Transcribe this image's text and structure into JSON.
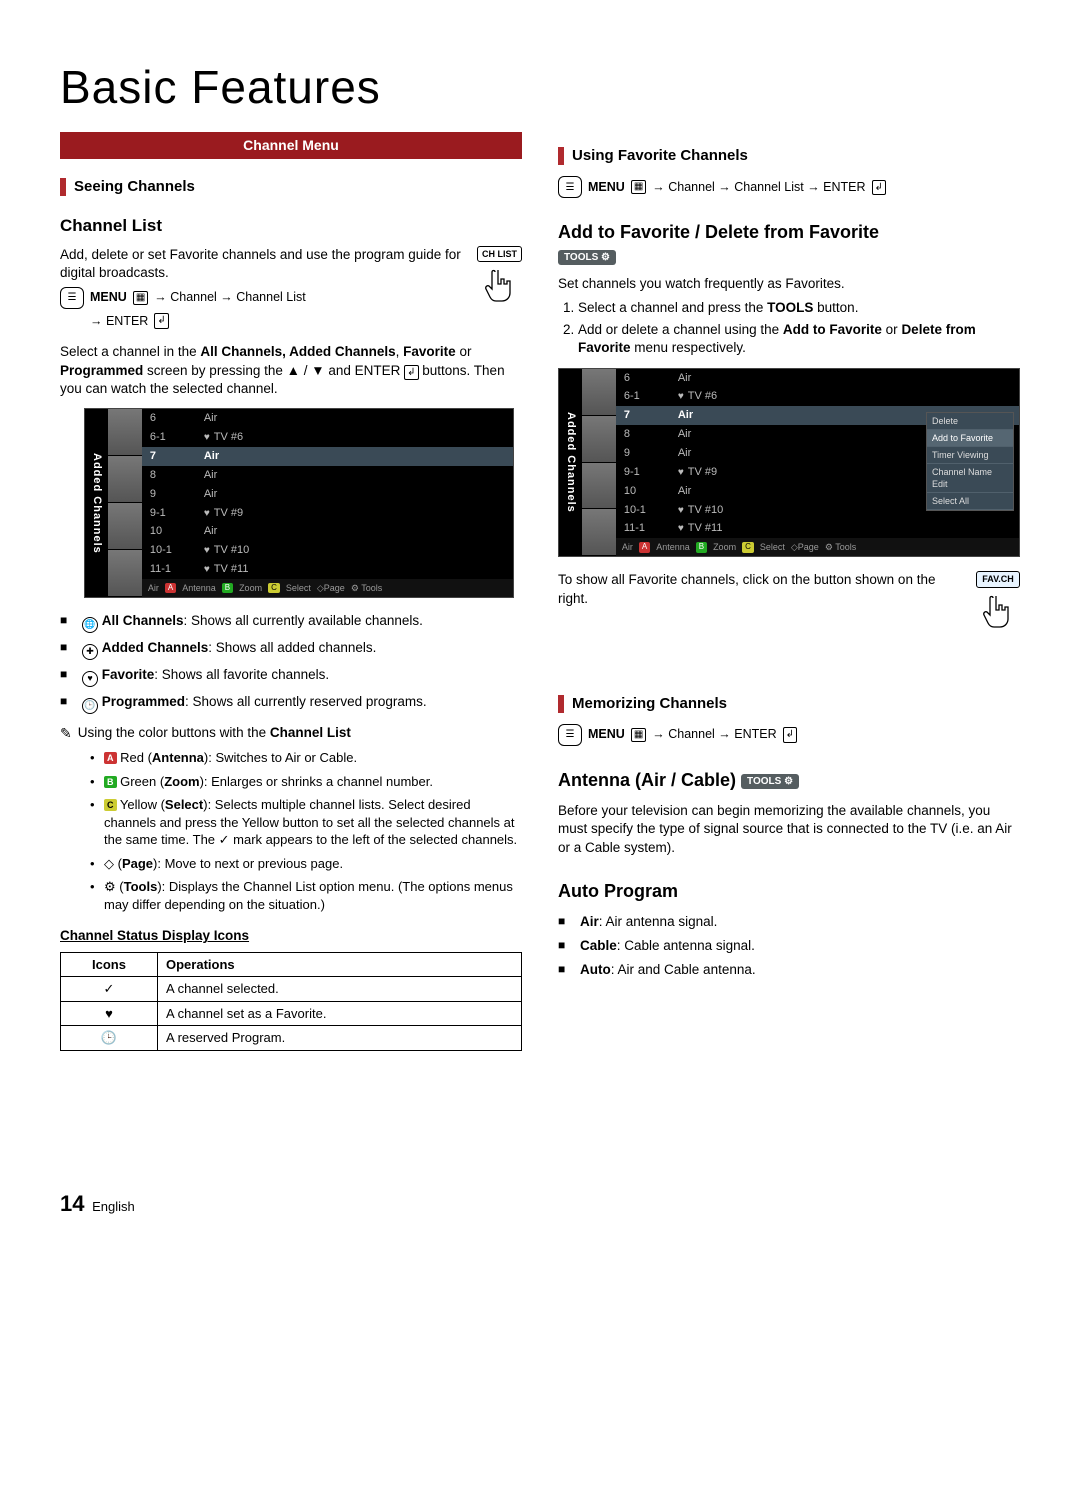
{
  "page": {
    "title": "Basic Features",
    "number": "14",
    "lang": "English"
  },
  "left": {
    "menu_bar": "Channel Menu",
    "seeing_head": "Seeing Channels",
    "chlist_head": "Channel List",
    "intro": "Add, delete or set Favorite channels and use the program guide for digital broadcasts.",
    "path_parts": [
      "MENU",
      "→ Channel → Channel List",
      "→ ENTER"
    ],
    "chlist_btn": "CH LIST",
    "select_para": "Select a channel in the All Channels, Added Channels, Favorite or Programmed screen by pressing the ▲ / ▼ and ENTER buttons. Then you can watch the selected channel.",
    "ch_side": "Added Channels",
    "ch_rows": [
      {
        "num": "6",
        "name": "Air"
      },
      {
        "num": "6-1",
        "name": "TV #6",
        "heart": true
      },
      {
        "num": "7",
        "name": "Air",
        "sel": true
      },
      {
        "num": "8",
        "name": "Air"
      },
      {
        "num": "9",
        "name": "Air"
      },
      {
        "num": "9-1",
        "name": "TV #9",
        "heart": true
      },
      {
        "num": "10",
        "name": "Air"
      },
      {
        "num": "10-1",
        "name": "TV #10",
        "heart": true
      },
      {
        "num": "11-1",
        "name": "TV #11",
        "heart": true
      }
    ],
    "ch_foot_left": "Air",
    "ch_foot": [
      "Antenna",
      "Zoom",
      "Select",
      "Page",
      "Tools"
    ],
    "bullets": [
      {
        "icon": "globe",
        "b": "All Channels",
        "t": ": Shows all currently available channels."
      },
      {
        "icon": "plus",
        "b": "Added Channels",
        "t": ": Shows all added channels."
      },
      {
        "icon": "heart",
        "b": "Favorite",
        "t": ": Shows all favorite channels."
      },
      {
        "icon": "clock",
        "b": "Programmed",
        "t": ": Shows all currently reserved programs."
      }
    ],
    "note": "Using the color buttons with the Channel List",
    "color_bullets": [
      {
        "c": "red",
        "b": "Red (Antenna)",
        "t": ": Switches to Air or Cable."
      },
      {
        "c": "green",
        "b": "Green (Zoom)",
        "t": ": Enlarges or shrinks a channel number."
      },
      {
        "c": "yellow",
        "b": "Yellow (Select)",
        "t": ": Selects multiple channel lists. Select desired channels and press the Yellow button to set all the selected channels at the same time. The ✓ mark appears to the left of the selected channels."
      },
      {
        "c": "page",
        "b": "(Page)",
        "t": ": Move to next or previous page."
      },
      {
        "c": "tools",
        "b": "(Tools)",
        "t": ": Displays the Channel List option menu. (The options menus may differ depending on the situation.)"
      }
    ],
    "icons_head": "Channel Status Display Icons",
    "icons_cols": [
      "Icons",
      "Operations"
    ],
    "icons_rows": [
      {
        "i": "✓",
        "t": "A channel selected."
      },
      {
        "i": "♥",
        "t": "A channel set as a Favorite."
      },
      {
        "i": "🕒",
        "t": "A reserved Program."
      }
    ]
  },
  "right": {
    "using_head": "Using Favorite Channels",
    "path1": [
      "MENU",
      "→ Channel → Channel List → ENTER"
    ],
    "addfav_head": "Add to Favorite / Delete from Favorite",
    "tools": "TOOLS",
    "set_line": "Set channels you watch frequently as Favorites.",
    "steps": [
      "Select a channel and press the TOOLS button.",
      "Add or delete a channel using the Add to Favorite or Delete from Favorite menu respectively."
    ],
    "ch_side": "Added Channels",
    "ch_rows": [
      {
        "num": "6",
        "name": "Air"
      },
      {
        "num": "6-1",
        "name": "TV #6",
        "heart": true
      },
      {
        "num": "7",
        "name": "Air",
        "sel": true
      },
      {
        "num": "8",
        "name": "Air"
      },
      {
        "num": "9",
        "name": "Air"
      },
      {
        "num": "9-1",
        "name": "TV #9",
        "heart": true
      },
      {
        "num": "10",
        "name": "Air"
      },
      {
        "num": "10-1",
        "name": "TV #10",
        "heart": true
      },
      {
        "num": "11-1",
        "name": "TV #11",
        "heart": true
      }
    ],
    "ctx_menu": [
      "Delete",
      "Add to Favorite",
      "Timer Viewing",
      "Channel Name Edit",
      "Select All"
    ],
    "ch_foot_left": "Air",
    "ch_foot": [
      "Antenna",
      "Zoom",
      "Select",
      "Page",
      "Tools"
    ],
    "showfav": "To show all Favorite channels, click on the button shown on the right.",
    "favbtn": "FAV.CH",
    "mem_head": "Memorizing Channels",
    "path2": [
      "MENU",
      "→ Channel → ENTER"
    ],
    "ant_head": "Antenna (Air / Cable)",
    "ant_para": "Before your television can begin memorizing the available channels, you must specify the type of signal source that is connected to the TV (i.e. an Air or a Cable system).",
    "auto_head": "Auto Program",
    "auto_items": [
      {
        "b": "Air",
        "t": ": Air antenna signal."
      },
      {
        "b": "Cable",
        "t": ": Cable antenna signal."
      },
      {
        "b": "Auto",
        "t": ": Air and Cable antenna."
      }
    ]
  }
}
